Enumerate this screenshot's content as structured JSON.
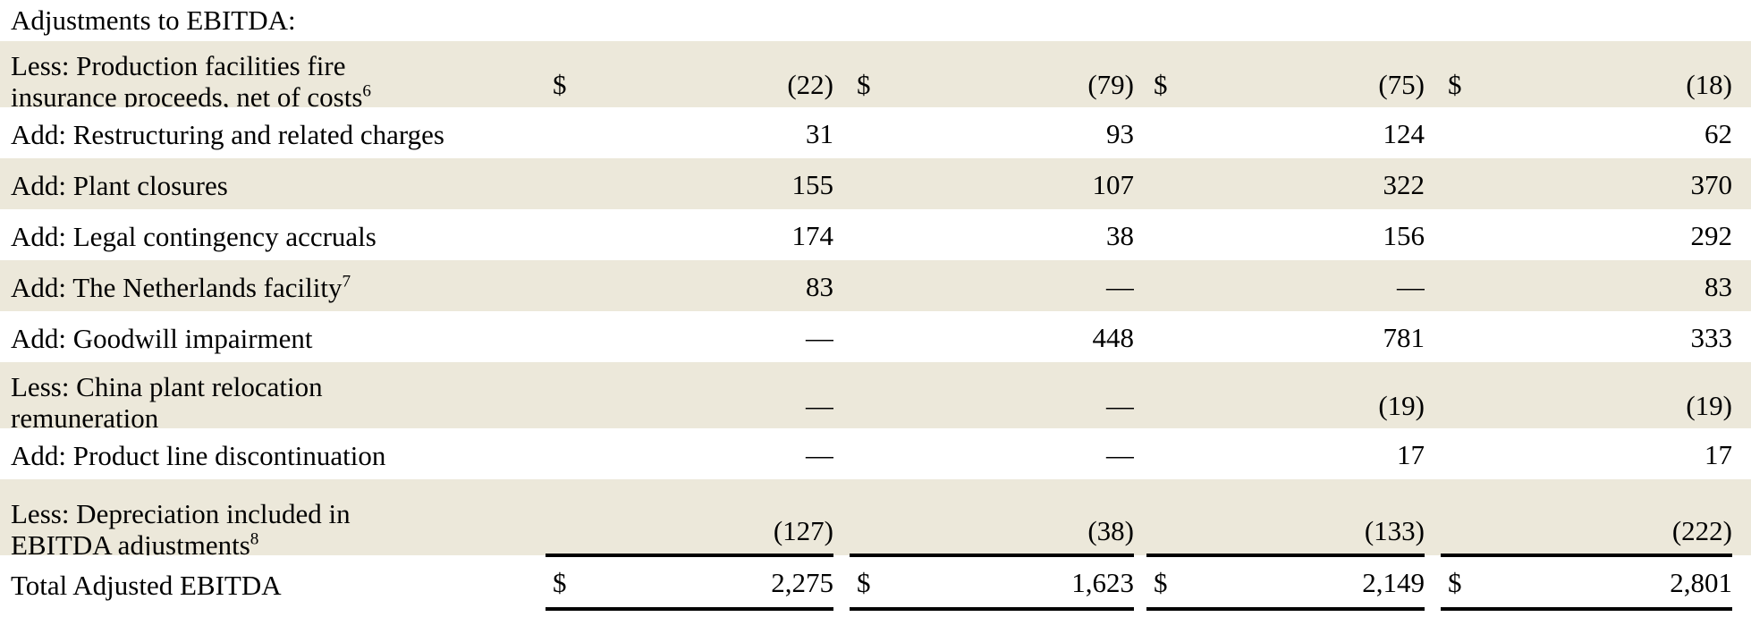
{
  "colors": {
    "row_shade": "#ece8da",
    "text": "#000000",
    "rule": "#000000",
    "background": "#ffffff"
  },
  "table": {
    "header_label": "Adjustments to EBITDA:",
    "currency_symbol": "$",
    "nil_symbol": "—",
    "rows": [
      {
        "label_lines": [
          "Less: Production facilities fire",
          "insurance proceeds, net of costs"
        ],
        "sup": "6",
        "dollar": true,
        "shaded": true,
        "values": [
          "(22)",
          "(79)",
          "(75)",
          "(18)"
        ]
      },
      {
        "label_lines": [
          "Add: Restructuring and related charges"
        ],
        "dollar": false,
        "shaded": false,
        "values": [
          "31",
          "93",
          "124",
          "62"
        ]
      },
      {
        "label_lines": [
          "Add: Plant closures"
        ],
        "dollar": false,
        "shaded": true,
        "values": [
          "155",
          "107",
          "322",
          "370"
        ]
      },
      {
        "label_lines": [
          "Add: Legal contingency accruals"
        ],
        "dollar": false,
        "shaded": false,
        "values": [
          "174",
          "38",
          "156",
          "292"
        ]
      },
      {
        "label_lines": [
          "Add: The Netherlands facility"
        ],
        "sup": "7",
        "dollar": false,
        "shaded": true,
        "values": [
          "83",
          "—",
          "—",
          "83"
        ]
      },
      {
        "label_lines": [
          "Add: Goodwill impairment"
        ],
        "dollar": false,
        "shaded": false,
        "values": [
          "—",
          "448",
          "781",
          "333"
        ]
      },
      {
        "label_lines": [
          "Less: China plant relocation",
          "remuneration"
        ],
        "dollar": false,
        "shaded": true,
        "values": [
          "—",
          "—",
          "(19)",
          "(19)"
        ]
      },
      {
        "label_lines": [
          "Add: Product line discontinuation"
        ],
        "dollar": false,
        "shaded": false,
        "values": [
          "—",
          "—",
          "17",
          "17"
        ]
      },
      {
        "label_lines": [
          "Less: Depreciation included in",
          "EBITDA adjustments"
        ],
        "sup": "8",
        "dollar": false,
        "shaded": true,
        "rule_below": true,
        "deep": true,
        "values": [
          "(127)",
          "(38)",
          "(133)",
          "(222)"
        ]
      }
    ],
    "total_row": {
      "label": "Total Adjusted EBITDA",
      "dollar": true,
      "rule_below": true,
      "values": [
        "2,275",
        "1,623",
        "2,149",
        "2,801"
      ]
    }
  }
}
